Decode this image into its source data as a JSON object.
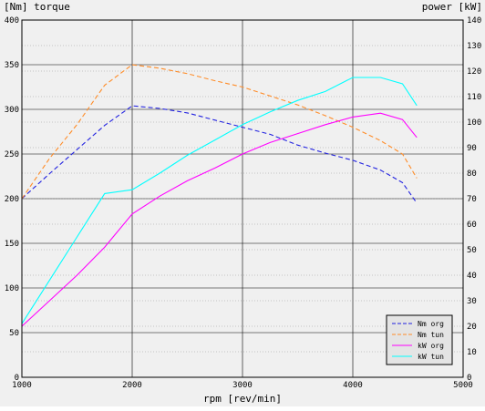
{
  "chart_data": {
    "type": "line",
    "xlabel": "rpm [rev/min]",
    "ylabel_left": "[Nm] torque",
    "ylabel_right": "power [kW]",
    "xlim": [
      1000,
      5000
    ],
    "ylim_left": [
      0,
      400
    ],
    "ylim_right": [
      0,
      140
    ],
    "x_ticks": [
      "1000",
      "2000",
      "3000",
      "4000",
      "5000"
    ],
    "y_left_ticks": [
      "0",
      "50",
      "100",
      "150",
      "200",
      "250",
      "300",
      "350",
      "400"
    ],
    "y_right_ticks": [
      "0",
      "10",
      "20",
      "30",
      "40",
      "50",
      "60",
      "70",
      "80",
      "90",
      "100",
      "110",
      "120",
      "130",
      "140"
    ],
    "grid": true,
    "legend_position": "bottom-right",
    "series": [
      {
        "name": "Nm org",
        "axis": "left",
        "color": "#2020e0",
        "dash": "dashed",
        "x": [
          1000,
          1250,
          1500,
          1750,
          2000,
          2250,
          2500,
          2750,
          3000,
          3250,
          3500,
          3750,
          4000,
          4250,
          4450,
          4580
        ],
        "y": [
          200,
          228,
          255,
          282,
          304,
          301,
          296,
          288,
          280,
          272,
          260,
          251,
          243,
          232,
          218,
          195
        ]
      },
      {
        "name": "Nm tun",
        "axis": "left",
        "color": "#ff8c28",
        "dash": "dashed",
        "x": [
          1000,
          1250,
          1500,
          1750,
          2000,
          2250,
          2500,
          2750,
          3000,
          3250,
          3500,
          3750,
          4000,
          4250,
          4450,
          4580
        ],
        "y": [
          200,
          245,
          283,
          327,
          350,
          346,
          340,
          332,
          325,
          315,
          305,
          293,
          280,
          265,
          250,
          223
        ]
      },
      {
        "name": "kW org",
        "axis": "right",
        "color": "#ff00ff",
        "dash": "solid",
        "x": [
          1000,
          1250,
          1500,
          1750,
          2000,
          2250,
          2500,
          2750,
          3000,
          3250,
          3500,
          3750,
          4000,
          4250,
          4450,
          4580
        ],
        "y": [
          20,
          30,
          40,
          51,
          64,
          71,
          77,
          82,
          87.5,
          92,
          95.5,
          99,
          102,
          103.5,
          101,
          94
        ]
      },
      {
        "name": "kW tun",
        "axis": "right",
        "color": "#00ffff",
        "dash": "solid",
        "x": [
          1000,
          1250,
          1500,
          1750,
          2000,
          2250,
          2500,
          2750,
          3000,
          3250,
          3500,
          3750,
          4000,
          4250,
          4450,
          4580
        ],
        "y": [
          21,
          38,
          55,
          72,
          73.5,
          80,
          87,
          93,
          99,
          104,
          108.5,
          112,
          117.5,
          117.5,
          115,
          106.5
        ]
      }
    ]
  }
}
